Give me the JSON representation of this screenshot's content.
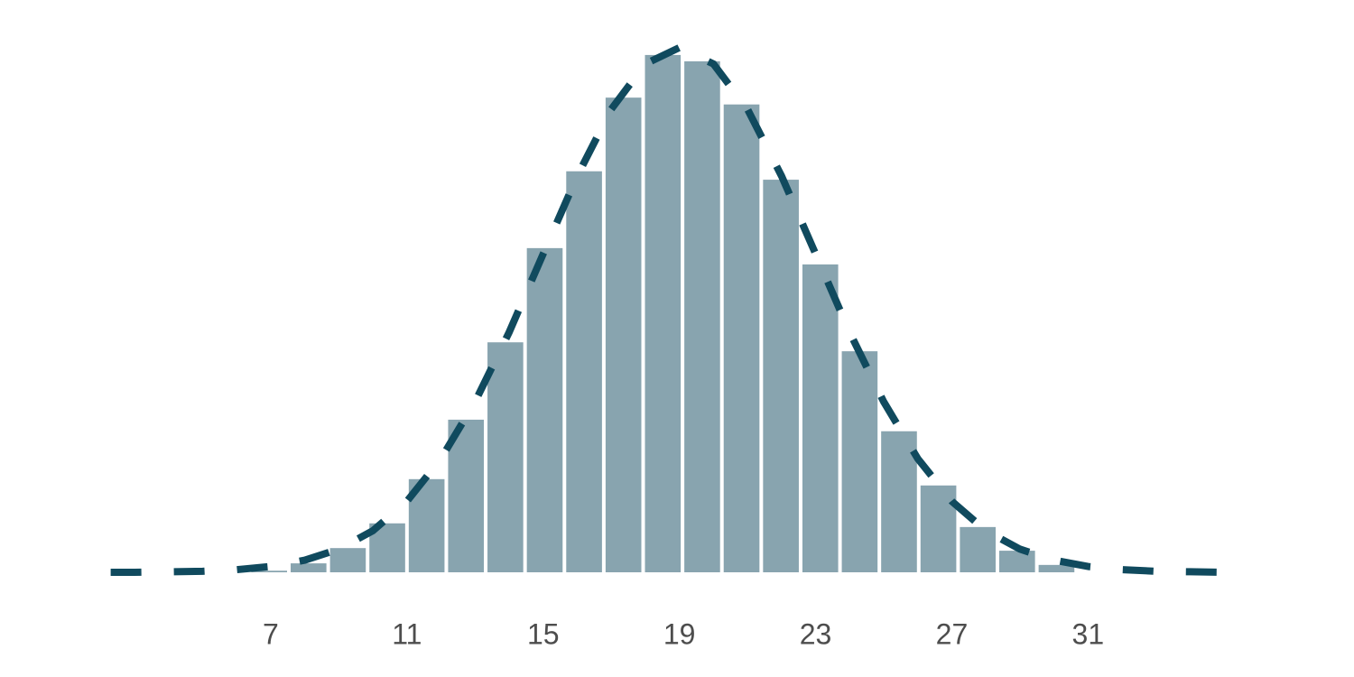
{
  "chart_data": {
    "type": "histogram",
    "bins": [
      6.376,
      7.532,
      8.688,
      9.844,
      11.0,
      12.156,
      13.312,
      14.468,
      15.624,
      16.78,
      17.936,
      19.092,
      20.248,
      21.404,
      22.56,
      23.716,
      24.872,
      26.028,
      27.184,
      28.34,
      29.496,
      30.652
    ],
    "values": [
      0.0003,
      0.0017,
      0.0046,
      0.0093,
      0.0177,
      0.029,
      0.0437,
      0.0616,
      0.0762,
      0.0902,
      0.0983,
      0.0971,
      0.0889,
      0.0746,
      0.0585,
      0.042,
      0.0268,
      0.0165,
      0.0086,
      0.0041,
      0.0014
    ],
    "color": "#88a4af",
    "curve": {
      "color": "#104a5e",
      "dashed": true,
      "x": [
        2.3,
        3,
        4,
        5,
        6,
        7,
        8,
        9,
        10,
        11,
        12,
        13,
        14,
        15,
        16,
        17,
        18,
        19,
        20,
        21,
        22,
        23,
        24,
        25,
        26,
        27,
        28,
        29,
        30,
        31,
        32,
        33,
        34,
        35,
        35.5
      ],
      "y": [
        0,
        0,
        0.0001,
        0.0002,
        0.0005,
        0.0011,
        0.0023,
        0.0044,
        0.0079,
        0.0135,
        0.0216,
        0.0324,
        0.0456,
        0.0605,
        0.0753,
        0.088,
        0.0966,
        0.0997,
        0.0966,
        0.088,
        0.0753,
        0.0605,
        0.0456,
        0.0324,
        0.0216,
        0.0135,
        0.0079,
        0.0044,
        0.0023,
        0.0011,
        0.0005,
        0.0002,
        0.0001,
        0,
        0
      ]
    },
    "xlim": [
      -0.95,
      38.81
    ],
    "ylim": [
      0,
      0.1
    ],
    "xticks": [
      7,
      11,
      15,
      19,
      23,
      27,
      31
    ]
  }
}
